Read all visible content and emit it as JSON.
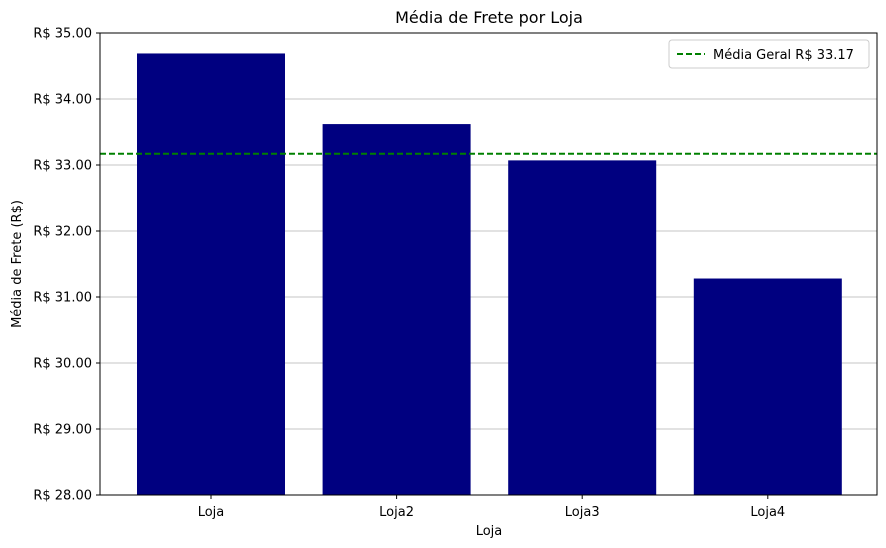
{
  "chart_data": {
    "type": "bar",
    "title": "Média de Frete por Loja",
    "xlabel": "Loja",
    "ylabel": "Média de Frete (R$)",
    "categories": [
      "Loja",
      "Loja2",
      "Loja3",
      "Loja4"
    ],
    "values": [
      34.69,
      33.62,
      33.07,
      31.28
    ],
    "ylim": [
      28,
      35
    ],
    "yticks": [
      28,
      29,
      30,
      31,
      32,
      33,
      34,
      35
    ],
    "ytick_labels": [
      "R$ 28.00",
      "R$ 29.00",
      "R$ 30.00",
      "R$ 31.00",
      "R$ 32.00",
      "R$ 33.00",
      "R$ 34.00",
      "R$ 35.00"
    ],
    "grid": "y",
    "bar_color": "#000080",
    "reference_line": {
      "value": 33.17,
      "label": "Média Geral R$ 33.17",
      "color": "#008000",
      "style": "dashed"
    },
    "legend_position": "top-right"
  }
}
